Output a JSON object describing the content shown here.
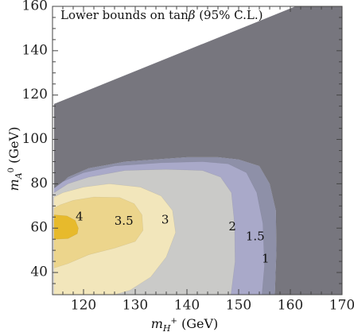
{
  "chart_data": {
    "type": "contour",
    "title_pre": "Lower bounds on tan",
    "title_sym": "β",
    "title_post": " (95% C.L.)",
    "xlabel_var": "m",
    "xlabel_sub": "H",
    "xlabel_sup": "+",
    "xlabel_unit": " (GeV)",
    "ylabel_var": "m",
    "ylabel_sub": "A",
    "ylabel_sup": "0",
    "ylabel_unit": " (GeV)",
    "xlim": [
      114,
      170
    ],
    "ylim": [
      30,
      160
    ],
    "xticks": [
      120,
      130,
      140,
      150,
      160,
      170
    ],
    "yticks": [
      40,
      60,
      80,
      100,
      120,
      140,
      160
    ],
    "excluded_region": {
      "color": "#77767e",
      "polygon": [
        [
          114.3,
          116
        ],
        [
          161,
          160
        ],
        [
          170,
          160
        ],
        [
          170,
          30
        ],
        [
          157,
          30
        ],
        [
          157.3,
          50
        ],
        [
          157.2,
          68
        ],
        [
          156,
          80
        ],
        [
          154,
          88
        ],
        [
          150,
          91
        ],
        [
          146,
          92
        ],
        [
          140,
          92
        ],
        [
          128,
          90
        ],
        [
          121,
          87
        ],
        [
          117,
          83
        ],
        [
          114.3,
          77
        ]
      ]
    },
    "regions": [
      {
        "level": "1",
        "color": "#8e90a8",
        "polygon": [
          [
            114.3,
            30
          ],
          [
            157,
            30
          ],
          [
            157.3,
            50
          ],
          [
            157.2,
            68
          ],
          [
            156,
            80
          ],
          [
            154,
            88
          ],
          [
            150,
            91
          ],
          [
            146,
            92
          ],
          [
            140,
            92
          ],
          [
            128,
            90
          ],
          [
            121,
            87
          ],
          [
            117,
            83
          ],
          [
            114.3,
            77
          ]
        ]
      },
      {
        "level": "1.5",
        "color": "#a9a9c9",
        "polygon": [
          [
            114.3,
            30
          ],
          [
            154.5,
            30
          ],
          [
            155,
            43
          ],
          [
            154.7,
            62
          ],
          [
            153.5,
            76
          ],
          [
            151.5,
            85
          ],
          [
            148,
            89
          ],
          [
            143,
            90
          ],
          [
            135,
            89.5
          ],
          [
            126,
            88
          ],
          [
            120,
            85
          ],
          [
            116,
            81
          ],
          [
            114.3,
            78
          ]
        ]
      },
      {
        "level": "2",
        "color": "#cacac8",
        "polygon": [
          [
            114.3,
            30
          ],
          [
            148.5,
            30
          ],
          [
            149.3,
            45
          ],
          [
            149.2,
            62
          ],
          [
            148.6,
            76
          ],
          [
            146.5,
            83
          ],
          [
            143,
            86
          ],
          [
            136,
            86.5
          ],
          [
            128,
            86
          ],
          [
            121,
            83
          ],
          [
            117,
            80
          ],
          [
            114.3,
            76
          ]
        ]
      },
      {
        "level": "3",
        "color": "#f2e6bb",
        "polygon": [
          [
            114.3,
            30
          ],
          [
            126,
            30
          ],
          [
            129,
            32
          ],
          [
            133,
            38
          ],
          [
            136,
            47
          ],
          [
            137.8,
            58
          ],
          [
            137.2,
            68
          ],
          [
            135,
            74.5
          ],
          [
            131,
            78.5
          ],
          [
            125,
            80
          ],
          [
            120,
            78.5
          ],
          [
            116,
            76
          ],
          [
            114.3,
            74
          ]
        ]
      },
      {
        "level": "3.5",
        "color": "#ecd58c",
        "polygon": [
          [
            114.3,
            42
          ],
          [
            117,
            44
          ],
          [
            121,
            48
          ],
          [
            126,
            51
          ],
          [
            130,
            54
          ],
          [
            131.5,
            59
          ],
          [
            131.3,
            66
          ],
          [
            129.8,
            71
          ],
          [
            127,
            73.8
          ],
          [
            122,
            74
          ],
          [
            118,
            72.5
          ],
          [
            115.5,
            70.5
          ],
          [
            114.3,
            69
          ]
        ]
      },
      {
        "level": "4",
        "color": "#e7ba2c",
        "polygon": [
          [
            114.3,
            55
          ],
          [
            117,
            55.3
          ],
          [
            118.8,
            57.5
          ],
          [
            119,
            60
          ],
          [
            118.4,
            63.5
          ],
          [
            116.8,
            65.5
          ],
          [
            114.3,
            66
          ]
        ]
      }
    ],
    "contour_labels": [
      {
        "text": "4",
        "x": 119.2,
        "y": 65
      },
      {
        "text": "3.5",
        "x": 127.8,
        "y": 63
      },
      {
        "text": "3",
        "x": 135.8,
        "y": 63.5
      },
      {
        "text": "2",
        "x": 148.8,
        "y": 60.5
      },
      {
        "text": "1.5",
        "x": 153.2,
        "y": 56
      },
      {
        "text": "1",
        "x": 155.2,
        "y": 46
      }
    ]
  }
}
